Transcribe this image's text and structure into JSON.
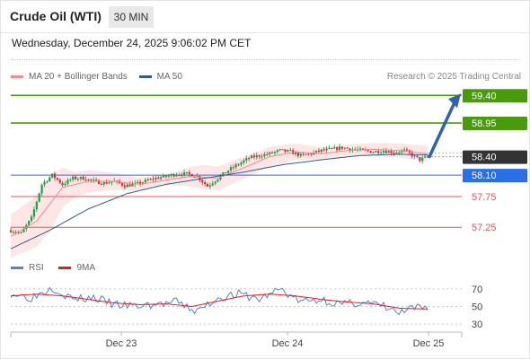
{
  "header": {
    "title": "Crude Oil (WTI)",
    "timeframe": "30 MIN"
  },
  "date_line": "Wednesday, December 24, 2025 9:06:02 PM CET",
  "legend": {
    "ma20": "MA 20 + Bollinger Bands",
    "ma50": "MA 50",
    "credit": "Research © 2025 Trading Central"
  },
  "rsi_legend": {
    "rsi": "RSI",
    "ma9": "9MA"
  },
  "colors": {
    "ma20": "#f28a8a",
    "ma50": "#2f5b94",
    "green_level": "#4a9a0e",
    "blue_level": "#2a6ee8",
    "red_level": "#e05a5a",
    "bull": "#1e9e4a",
    "bear": "#d2303b",
    "band": "#fddede",
    "rsi": "#5b7fd6",
    "rsi_ma": "#e02020",
    "arrow": "#2d64ad"
  },
  "chart_data": [
    {
      "type": "candlestick",
      "ylim": [
        56.8,
        59.55
      ],
      "x_ticks": [
        "Dec 23",
        "Dec 24",
        "Dec 25"
      ],
      "levels": [
        {
          "value": 59.4,
          "label": "59.40",
          "style": "resistance"
        },
        {
          "value": 58.95,
          "label": "58.95",
          "style": "resistance"
        },
        {
          "value": 58.4,
          "label": "58.40",
          "style": "current"
        },
        {
          "value": 58.1,
          "label": "58.10",
          "style": "pivot"
        },
        {
          "value": 57.75,
          "label": "57.75",
          "style": "support"
        },
        {
          "value": 57.25,
          "label": "57.25",
          "style": "support"
        }
      ],
      "anchors": [
        [
          0,
          57.2
        ],
        [
          4,
          57.15
        ],
        [
          8,
          57.4
        ],
        [
          12,
          57.95
        ],
        [
          16,
          58.1
        ],
        [
          20,
          57.95
        ],
        [
          24,
          58.05
        ],
        [
          28,
          58.05
        ],
        [
          32,
          58.0
        ],
        [
          36,
          57.97
        ],
        [
          40,
          58.0
        ],
        [
          44,
          57.93
        ],
        [
          48,
          57.95
        ],
        [
          52,
          58.0
        ],
        [
          56,
          58.05
        ],
        [
          60,
          58.08
        ],
        [
          64,
          58.12
        ],
        [
          68,
          58.12
        ],
        [
          72,
          58.08
        ],
        [
          76,
          57.92
        ],
        [
          80,
          58.05
        ],
        [
          84,
          58.18
        ],
        [
          88,
          58.28
        ],
        [
          92,
          58.38
        ],
        [
          96,
          58.42
        ],
        [
          100,
          58.45
        ],
        [
          104,
          58.5
        ],
        [
          108,
          58.48
        ],
        [
          112,
          58.42
        ],
        [
          116,
          58.45
        ],
        [
          120,
          58.5
        ],
        [
          124,
          58.52
        ],
        [
          128,
          58.55
        ],
        [
          132,
          58.52
        ],
        [
          136,
          58.5
        ],
        [
          140,
          58.48
        ],
        [
          144,
          58.5
        ],
        [
          148,
          58.47
        ],
        [
          152,
          58.5
        ],
        [
          156,
          58.4
        ],
        [
          158,
          58.35
        ],
        [
          161,
          58.4
        ]
      ],
      "ma20": [
        [
          0,
          57.1
        ],
        [
          10,
          57.35
        ],
        [
          20,
          57.9
        ],
        [
          30,
          58.0
        ],
        [
          40,
          58.0
        ],
        [
          50,
          57.95
        ],
        [
          60,
          58.02
        ],
        [
          70,
          58.08
        ],
        [
          80,
          58.05
        ],
        [
          90,
          58.22
        ],
        [
          100,
          58.4
        ],
        [
          110,
          58.48
        ],
        [
          120,
          58.45
        ],
        [
          130,
          58.5
        ],
        [
          140,
          58.52
        ],
        [
          150,
          58.5
        ],
        [
          161,
          58.45
        ]
      ],
      "ma50": [
        [
          0,
          56.9
        ],
        [
          15,
          57.2
        ],
        [
          30,
          57.55
        ],
        [
          45,
          57.8
        ],
        [
          60,
          57.95
        ],
        [
          75,
          58.05
        ],
        [
          90,
          58.15
        ],
        [
          105,
          58.27
        ],
        [
          120,
          58.35
        ],
        [
          135,
          58.42
        ],
        [
          150,
          58.44
        ],
        [
          161,
          58.43
        ]
      ],
      "band_half_width": [
        [
          0,
          0.35
        ],
        [
          15,
          0.45
        ],
        [
          25,
          0.2
        ],
        [
          45,
          0.12
        ],
        [
          60,
          0.08
        ],
        [
          75,
          0.2
        ],
        [
          90,
          0.18
        ],
        [
          105,
          0.15
        ],
        [
          120,
          0.1
        ],
        [
          135,
          0.1
        ],
        [
          150,
          0.12
        ],
        [
          161,
          0.12
        ]
      ],
      "arrow_target": 59.4
    },
    {
      "type": "line",
      "title": "RSI",
      "ylim": [
        25,
        80
      ],
      "y_ticks": [
        70,
        50,
        30
      ],
      "y_tick_labels": [
        "70",
        "50",
        "30"
      ],
      "rsi": [
        [
          0,
          65
        ],
        [
          8,
          60
        ],
        [
          16,
          72
        ],
        [
          24,
          58
        ],
        [
          32,
          60
        ],
        [
          40,
          52
        ],
        [
          48,
          50
        ],
        [
          56,
          52
        ],
        [
          64,
          55
        ],
        [
          72,
          44
        ],
        [
          80,
          60
        ],
        [
          88,
          64
        ],
        [
          96,
          58
        ],
        [
          104,
          70
        ],
        [
          112,
          55
        ],
        [
          120,
          58
        ],
        [
          128,
          52
        ],
        [
          136,
          55
        ],
        [
          144,
          50
        ],
        [
          150,
          42
        ],
        [
          156,
          48
        ],
        [
          161,
          48
        ]
      ],
      "rsi_ma": [
        [
          0,
          62
        ],
        [
          10,
          64
        ],
        [
          20,
          62
        ],
        [
          30,
          58
        ],
        [
          40,
          54
        ],
        [
          50,
          52
        ],
        [
          60,
          53
        ],
        [
          70,
          50
        ],
        [
          80,
          56
        ],
        [
          90,
          62
        ],
        [
          100,
          64
        ],
        [
          110,
          62
        ],
        [
          120,
          58
        ],
        [
          130,
          55
        ],
        [
          140,
          53
        ],
        [
          150,
          48
        ],
        [
          161,
          47
        ]
      ]
    }
  ]
}
